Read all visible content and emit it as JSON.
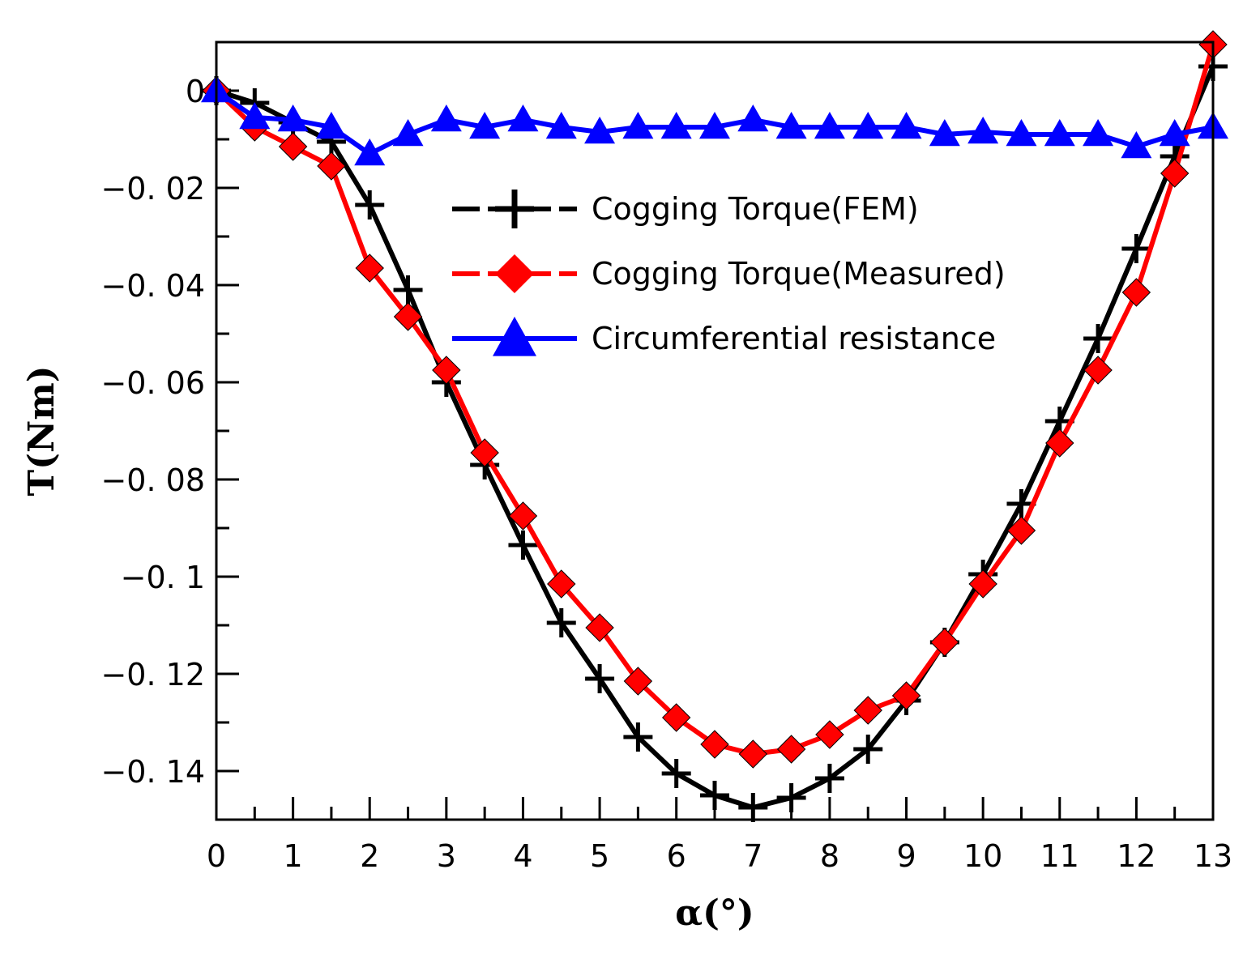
{
  "chart_data": {
    "type": "line",
    "title": "",
    "xlabel": "α(°)",
    "ylabel": "T(Nm)",
    "xlim": [
      0,
      13
    ],
    "ylim": [
      -0.15,
      0.01
    ],
    "x_ticks": [
      0,
      1,
      2,
      3,
      4,
      5,
      6,
      7,
      8,
      9,
      10,
      11,
      12,
      13
    ],
    "x_tick_labels": [
      "0",
      "1",
      "2",
      "3",
      "4",
      "5",
      "6",
      "7",
      "8",
      "9",
      "10",
      "11",
      "12",
      "13"
    ],
    "y_ticks": [
      0,
      -0.02,
      -0.04,
      -0.06,
      -0.08,
      -0.1,
      -0.12,
      -0.14
    ],
    "y_tick_labels": [
      "0",
      "−0. 02",
      "−0. 04",
      "−0. 06",
      "−0. 08",
      "−0. 1",
      "−0. 12",
      "−0. 14"
    ],
    "grid": false,
    "legend_position": "top-center",
    "series": [
      {
        "name": "Cogging Torque(FEM)",
        "color": "#000000",
        "marker": "plus",
        "x": [
          0,
          0.5,
          1,
          1.5,
          2,
          2.5,
          3,
          3.5,
          4,
          4.5,
          5,
          5.5,
          6,
          6.5,
          7,
          7.5,
          8,
          8.5,
          9,
          9.5,
          10,
          10.5,
          11,
          11.5,
          12,
          12.5,
          13
        ],
        "y": [
          0,
          -0.0025,
          -0.0065,
          -0.0105,
          -0.0235,
          -0.041,
          -0.06,
          -0.077,
          -0.0935,
          -0.1095,
          -0.121,
          -0.133,
          -0.1405,
          -0.145,
          -0.1475,
          -0.1455,
          -0.1415,
          -0.1355,
          -0.1255,
          -0.1135,
          -0.0995,
          -0.085,
          -0.068,
          -0.051,
          -0.0325,
          -0.0135,
          0.005
        ]
      },
      {
        "name": "Cogging Torque(Measured)",
        "color": "#ff0000",
        "marker": "diamond",
        "x": [
          0,
          0.5,
          1,
          1.5,
          2,
          2.5,
          3,
          3.5,
          4,
          4.5,
          5,
          5.5,
          6,
          6.5,
          7,
          7.5,
          8,
          8.5,
          9,
          9.5,
          10,
          10.5,
          11,
          11.5,
          12,
          12.5,
          13
        ],
        "y": [
          0,
          -0.0075,
          -0.0115,
          -0.0155,
          -0.0365,
          -0.0465,
          -0.0575,
          -0.0745,
          -0.0875,
          -0.1015,
          -0.1105,
          -0.1215,
          -0.129,
          -0.1345,
          -0.1365,
          -0.1355,
          -0.1325,
          -0.1275,
          -0.1245,
          -0.1135,
          -0.1015,
          -0.0905,
          -0.0725,
          -0.0575,
          -0.0415,
          -0.017,
          0.0095
        ]
      },
      {
        "name": "Circumferential resistance",
        "color": "#0000ff",
        "marker": "triangle",
        "x": [
          0,
          0.5,
          1,
          1.5,
          2,
          2.5,
          3,
          3.5,
          4,
          4.5,
          5,
          5.5,
          6,
          6.5,
          7,
          7.5,
          8,
          8.5,
          9,
          9.5,
          10,
          10.5,
          11,
          11.5,
          12,
          12.5,
          13
        ],
        "y": [
          0,
          -0.0055,
          -0.006,
          -0.0075,
          -0.013,
          -0.009,
          -0.006,
          -0.0075,
          -0.006,
          -0.0075,
          -0.0085,
          -0.0075,
          -0.0075,
          -0.0075,
          -0.006,
          -0.0075,
          -0.0075,
          -0.0075,
          -0.0075,
          -0.009,
          -0.0085,
          -0.009,
          -0.009,
          -0.009,
          -0.0115,
          -0.009,
          -0.0075
        ]
      }
    ]
  }
}
